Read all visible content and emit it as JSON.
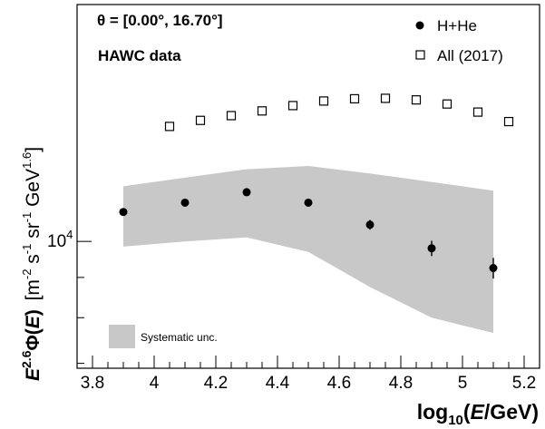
{
  "chart_data": {
    "type": "scatter",
    "xlabel": "log10(E/GeV)",
    "ylabel": "E^2.6 Φ(E) [m^-2 s^-1 sr^-1 GeV^1.6]",
    "xlim": [
      3.75,
      5.25
    ],
    "ylim": [
      6900,
      20000
    ],
    "y_scale": "log",
    "grid": false,
    "legend_position": "top-right",
    "annotations": {
      "angle": "θ = [0.00°, 16.70°]",
      "experiment": "HAWC data"
    },
    "x_ticks": [
      "3.8",
      "4",
      "4.2",
      "4.4",
      "4.6",
      "4.8",
      "5",
      "5.2"
    ],
    "y_ticks": [
      "10^4"
    ],
    "series": [
      {
        "name": "H+He",
        "marker": "filled-circle",
        "color": "#000000",
        "x": [
          3.9,
          4.1,
          4.3,
          4.5,
          4.7,
          4.9,
          5.1
        ],
        "y": [
          10900,
          11200,
          11550,
          11200,
          10500,
          9800,
          9250
        ],
        "y_err": [
          0,
          0,
          0,
          0,
          150,
          220,
          280
        ]
      },
      {
        "name": "All (2017)",
        "marker": "open-square",
        "color": "#000000",
        "x": [
          4.05,
          4.15,
          4.25,
          4.35,
          4.45,
          4.55,
          4.65,
          4.75,
          4.85,
          4.95,
          5.05,
          5.15
        ],
        "y": [
          14000,
          14250,
          14450,
          14650,
          14880,
          15080,
          15180,
          15200,
          15130,
          14950,
          14600,
          14200
        ]
      }
    ],
    "band": {
      "name": "Systematic unc.",
      "color": "#c8c8c8",
      "x": [
        3.9,
        4.1,
        4.3,
        4.5,
        4.7,
        4.9,
        5.1
      ],
      "upper": [
        11750,
        12050,
        12350,
        12470,
        12200,
        11900,
        11600
      ],
      "lower": [
        9850,
        10000,
        10120,
        9700,
        8750,
        8000,
        7650
      ]
    }
  }
}
